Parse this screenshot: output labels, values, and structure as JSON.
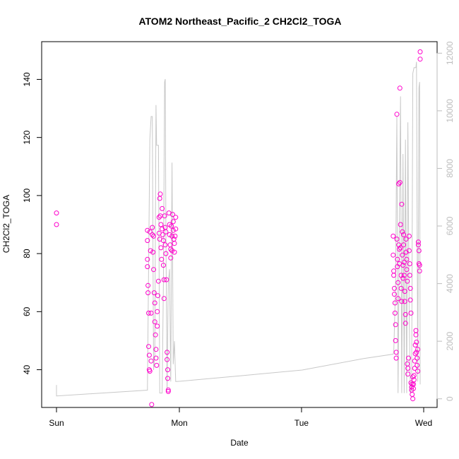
{
  "chart_data": {
    "type": "scatter",
    "title": "ATOM2 Northeast_Pacific_2 CH2Cl2_TOGA",
    "xlabel": "Date",
    "ylabel": "CH2Cl2_TOGA",
    "x_ticks": [
      "Sun",
      "Mon",
      "Tue",
      "Wed"
    ],
    "ylim": [
      27,
      153
    ],
    "y_ticks": [
      40,
      60,
      80,
      100,
      120,
      140
    ],
    "y2lim": [
      -300,
      12400
    ],
    "y2_ticks": [
      0,
      2000,
      4000,
      6000,
      8000,
      10000,
      12000
    ],
    "colors": {
      "points": "#ff00cc",
      "line": "#c8c8c8",
      "right_axis": "#bdbdbd"
    },
    "grid": false,
    "legend": "none",
    "series": [
      {
        "type": "scatter",
        "axis": "left",
        "points": [
          [
            0.0,
            94.0
          ],
          [
            0.0,
            90.0
          ],
          [
            0.74,
            88.0
          ],
          [
            0.74,
            84.5
          ],
          [
            0.74,
            78.0
          ],
          [
            0.74,
            75.5
          ],
          [
            0.745,
            69.0
          ],
          [
            0.745,
            66.5
          ],
          [
            0.75,
            59.5
          ],
          [
            0.75,
            48.0
          ],
          [
            0.755,
            45.0
          ],
          [
            0.755,
            40.0
          ],
          [
            0.76,
            39.5
          ],
          [
            0.76,
            87.5
          ],
          [
            0.765,
            81.0
          ],
          [
            0.77,
            59.5
          ],
          [
            0.77,
            43.0
          ],
          [
            0.775,
            28.0
          ],
          [
            0.78,
            89.0
          ],
          [
            0.78,
            86.5
          ],
          [
            0.785,
            80.5
          ],
          [
            0.79,
            86.0
          ],
          [
            0.79,
            74.5
          ],
          [
            0.795,
            66.5
          ],
          [
            0.8,
            63.0
          ],
          [
            0.8,
            56.5
          ],
          [
            0.805,
            52.0
          ],
          [
            0.81,
            47.0
          ],
          [
            0.81,
            44.0
          ],
          [
            0.815,
            41.5
          ],
          [
            0.82,
            60.0
          ],
          [
            0.82,
            55.0
          ],
          [
            0.825,
            65.5
          ],
          [
            0.83,
            70.5
          ],
          [
            0.835,
            92.5
          ],
          [
            0.835,
            87.0
          ],
          [
            0.84,
            99.0
          ],
          [
            0.84,
            85.0
          ],
          [
            0.845,
            100.5
          ],
          [
            0.845,
            93.0
          ],
          [
            0.85,
            90.0
          ],
          [
            0.85,
            82.0
          ],
          [
            0.855,
            78.0
          ],
          [
            0.86,
            95.5
          ],
          [
            0.86,
            88.5
          ],
          [
            0.865,
            86.5
          ],
          [
            0.87,
            84.5
          ],
          [
            0.87,
            76.0
          ],
          [
            0.875,
            71.0
          ],
          [
            0.875,
            64.5
          ],
          [
            0.88,
            93.0
          ],
          [
            0.885,
            89.0
          ],
          [
            0.885,
            83.0
          ],
          [
            0.89,
            87.5
          ],
          [
            0.89,
            80.0
          ],
          [
            0.895,
            71.0
          ],
          [
            0.9,
            46.0
          ],
          [
            0.9,
            43.5
          ],
          [
            0.905,
            40.0
          ],
          [
            0.905,
            37.0
          ],
          [
            0.91,
            33.0
          ],
          [
            0.91,
            32.5
          ],
          [
            0.915,
            94.0
          ],
          [
            0.92,
            90.0
          ],
          [
            0.92,
            86.5
          ],
          [
            0.925,
            83.0
          ],
          [
            0.93,
            81.5
          ],
          [
            0.93,
            78.5
          ],
          [
            0.935,
            89.5
          ],
          [
            0.94,
            86.0
          ],
          [
            0.94,
            81.0
          ],
          [
            0.945,
            93.5
          ],
          [
            0.95,
            91.0
          ],
          [
            0.95,
            88.0
          ],
          [
            0.955,
            85.0
          ],
          [
            0.96,
            80.5
          ],
          [
            0.96,
            83.5
          ],
          [
            0.965,
            86.0
          ],
          [
            0.97,
            92.5
          ],
          [
            0.97,
            88.5
          ],
          [
            2.74,
            86.0
          ],
          [
            2.74,
            79.5
          ],
          [
            2.745,
            74.0
          ],
          [
            2.745,
            72.5
          ],
          [
            2.75,
            68.0
          ],
          [
            2.75,
            66.0
          ],
          [
            2.755,
            63.0
          ],
          [
            2.755,
            59.5
          ],
          [
            2.76,
            55.5
          ],
          [
            2.76,
            50.0
          ],
          [
            2.765,
            46.0
          ],
          [
            2.765,
            44.0
          ],
          [
            2.77,
            128.0
          ],
          [
            2.77,
            85.0
          ],
          [
            2.775,
            78.0
          ],
          [
            2.775,
            75.5
          ],
          [
            2.78,
            70.0
          ],
          [
            2.78,
            64.5
          ],
          [
            2.785,
            104.0
          ],
          [
            2.785,
            83.0
          ],
          [
            2.79,
            81.5
          ],
          [
            2.79,
            76.5
          ],
          [
            2.795,
            137.0
          ],
          [
            2.795,
            104.5
          ],
          [
            2.8,
            90.0
          ],
          [
            2.8,
            82.0
          ],
          [
            2.805,
            72.5
          ],
          [
            2.805,
            68.0
          ],
          [
            2.81,
            63.5
          ],
          [
            2.81,
            97.0
          ],
          [
            2.815,
            87.5
          ],
          [
            2.815,
            79.5
          ],
          [
            2.82,
            76.0
          ],
          [
            2.82,
            71.5
          ],
          [
            2.825,
            86.5
          ],
          [
            2.825,
            83.0
          ],
          [
            2.83,
            77.0
          ],
          [
            2.83,
            72.5
          ],
          [
            2.835,
            67.0
          ],
          [
            2.835,
            63.5
          ],
          [
            2.84,
            59.0
          ],
          [
            2.84,
            56.0
          ],
          [
            2.845,
            85.0
          ],
          [
            2.845,
            80.5
          ],
          [
            2.85,
            78.0
          ],
          [
            2.85,
            74.5
          ],
          [
            2.855,
            70.5
          ],
          [
            2.855,
            42.0
          ],
          [
            2.86,
            40.5
          ],
          [
            2.86,
            38.5
          ],
          [
            2.865,
            44.0
          ],
          [
            2.87,
            86.0
          ],
          [
            2.87,
            81.0
          ],
          [
            2.875,
            76.5
          ],
          [
            2.875,
            72.5
          ],
          [
            2.88,
            68.0
          ],
          [
            2.88,
            64.0
          ],
          [
            2.885,
            59.5
          ],
          [
            2.885,
            35.5
          ],
          [
            2.89,
            34.0
          ],
          [
            2.89,
            33.0
          ],
          [
            2.895,
            31.5
          ],
          [
            2.895,
            35.0
          ],
          [
            2.9,
            37.5
          ],
          [
            2.9,
            30.0
          ],
          [
            2.905,
            33.5
          ],
          [
            2.905,
            35.0
          ],
          [
            2.91,
            36.5
          ],
          [
            2.91,
            38.0
          ],
          [
            2.915,
            40.5
          ],
          [
            2.915,
            43.0
          ],
          [
            2.92,
            48.5
          ],
          [
            2.92,
            45.5
          ],
          [
            2.925,
            52.0
          ],
          [
            2.925,
            53.5
          ],
          [
            2.93,
            49.5
          ],
          [
            2.93,
            46.0
          ],
          [
            2.935,
            44.0
          ],
          [
            2.935,
            41.5
          ],
          [
            2.94,
            39.5
          ],
          [
            2.94,
            47.0
          ],
          [
            2.945,
            83.0
          ],
          [
            2.945,
            84.0
          ],
          [
            2.95,
            81.0
          ],
          [
            2.95,
            76.5
          ],
          [
            2.955,
            76.0
          ],
          [
            2.955,
            74.0
          ],
          [
            2.96,
            147.0
          ],
          [
            2.96,
            149.5
          ]
        ]
      },
      {
        "type": "line",
        "axis": "right",
        "points": [
          [
            0.0,
            480
          ],
          [
            0.0,
            100
          ],
          [
            0.74,
            300
          ],
          [
            0.74,
            400
          ],
          [
            0.76,
            9000
          ],
          [
            0.77,
            9800
          ],
          [
            0.78,
            9800
          ],
          [
            0.79,
            1000
          ],
          [
            0.8,
            1500
          ],
          [
            0.81,
            10200
          ],
          [
            0.815,
            8800
          ],
          [
            0.83,
            8800
          ],
          [
            0.84,
            200
          ],
          [
            0.86,
            200
          ],
          [
            0.87,
            4000
          ],
          [
            0.88,
            11000
          ],
          [
            0.885,
            11100
          ],
          [
            0.89,
            6000
          ],
          [
            0.9,
            300
          ],
          [
            0.91,
            4000
          ],
          [
            0.92,
            4500
          ],
          [
            0.93,
            600
          ],
          [
            0.94,
            8200
          ],
          [
            0.95,
            1200
          ],
          [
            0.96,
            2000
          ],
          [
            0.97,
            600
          ],
          [
            0.98,
            600
          ],
          [
            1.5,
            800
          ],
          [
            2.0,
            1000
          ],
          [
            2.5,
            1400
          ],
          [
            2.74,
            1550
          ],
          [
            2.745,
            1600
          ],
          [
            2.76,
            4000
          ],
          [
            2.77,
            9800
          ],
          [
            2.78,
            200
          ],
          [
            2.79,
            6000
          ],
          [
            2.8,
            10500
          ],
          [
            2.81,
            200
          ],
          [
            2.82,
            8500
          ],
          [
            2.83,
            200
          ],
          [
            2.84,
            9000
          ],
          [
            2.85,
            200
          ],
          [
            2.86,
            9600
          ],
          [
            2.87,
            3000
          ],
          [
            2.88,
            200
          ],
          [
            2.89,
            400
          ],
          [
            2.9,
            11300
          ],
          [
            2.91,
            11500
          ],
          [
            2.925,
            11500
          ],
          [
            2.93,
            11700
          ],
          [
            2.94,
            600
          ],
          [
            2.95,
            10800
          ],
          [
            2.955,
            11000
          ],
          [
            2.96,
            500
          ]
        ]
      }
    ]
  }
}
